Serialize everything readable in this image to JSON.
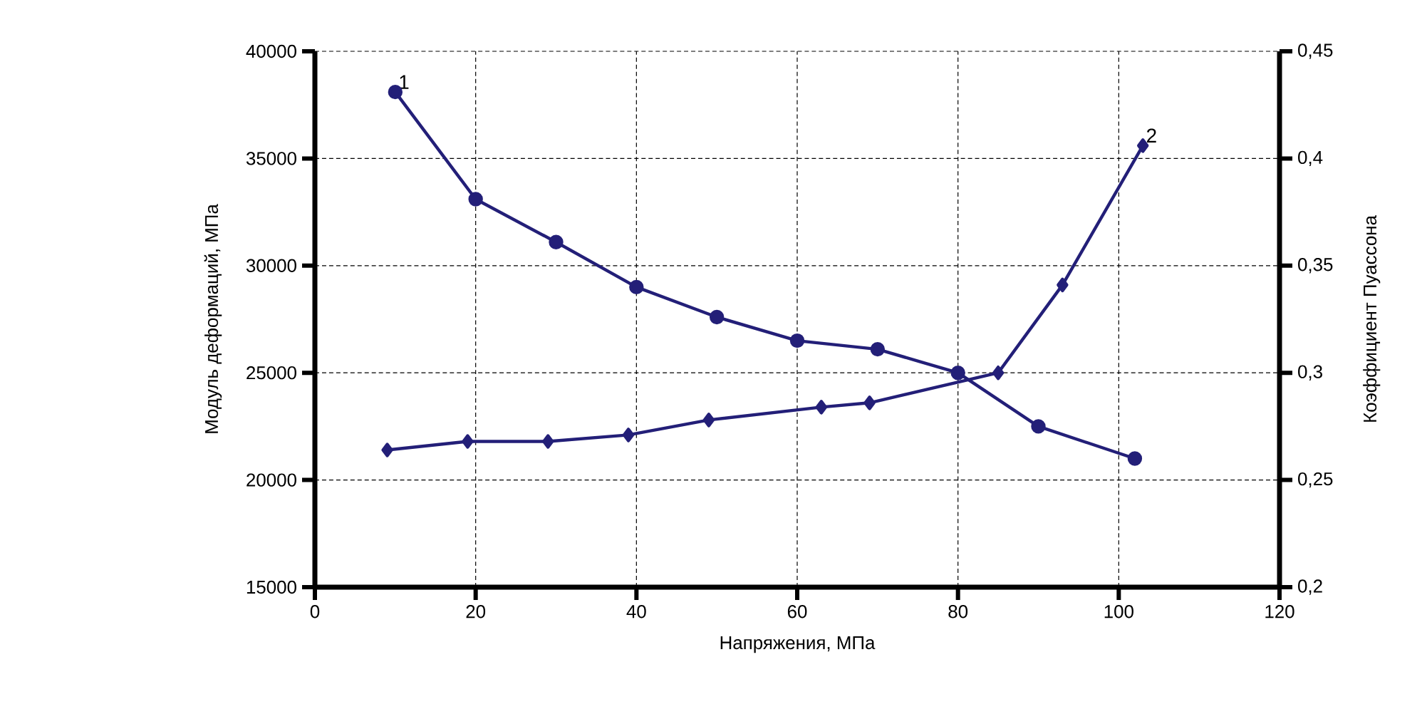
{
  "chart_data": {
    "type": "line",
    "xlabel": "Напряжения, МПа",
    "ylabel": "Модуль деформаций, МПа",
    "y2label": "Коэффициент Пуассона",
    "xlim": [
      0,
      120
    ],
    "xticks": [
      0,
      20,
      40,
      60,
      80,
      100,
      120
    ],
    "ylim": [
      15000,
      40000
    ],
    "yticks": [
      15000,
      20000,
      25000,
      30000,
      35000,
      40000
    ],
    "y2lim": [
      0.2,
      0.45
    ],
    "y2ticks": [
      {
        "value": 0.2,
        "label": "0,2"
      },
      {
        "value": 0.25,
        "label": "0,25"
      },
      {
        "value": 0.3,
        "label": "0,3"
      },
      {
        "value": 0.35,
        "label": "0,35"
      },
      {
        "value": 0.4,
        "label": "0,4"
      },
      {
        "value": 0.45,
        "label": "0,45"
      }
    ],
    "grid": true,
    "line_style": "solid",
    "series": [
      {
        "name": "1",
        "color": "#231f78",
        "marker": "circle",
        "x": [
          10,
          20,
          30,
          40,
          50,
          60,
          70,
          80,
          90,
          102
        ],
        "values": [
          38100,
          33100,
          31100,
          29000,
          27600,
          26500,
          26100,
          25000,
          22500,
          21000
        ]
      },
      {
        "name": "2",
        "color": "#231f78",
        "marker": "diamond",
        "axis": "y2",
        "x": [
          9,
          19,
          29,
          39,
          49,
          63,
          69,
          85,
          93,
          103
        ],
        "values": [
          0.264,
          0.268,
          0.268,
          0.271,
          0.278,
          0.284,
          0.286,
          0.3,
          0.341,
          0.406
        ]
      }
    ]
  }
}
